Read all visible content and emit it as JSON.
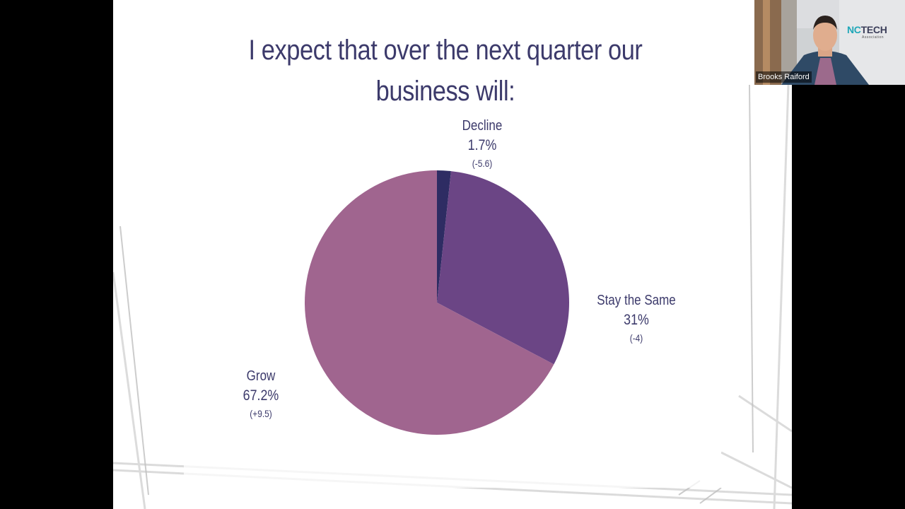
{
  "slide": {
    "title": "I expect that over the next quarter our business will:"
  },
  "chart_data": {
    "type": "pie",
    "title": "I expect that over the next quarter our business will:",
    "slices": [
      {
        "label": "Decline",
        "value": 1.7,
        "value_label": "1.7%",
        "change": "(-5.6)",
        "color": "#2e2c63"
      },
      {
        "label": "Stay the Same",
        "value": 31,
        "value_label": "31%",
        "change": "(-4)",
        "color": "#6b4585"
      },
      {
        "label": "Grow",
        "value": 67.2,
        "value_label": "67.2%",
        "change": "(+9.5)",
        "color": "#a0658f"
      }
    ],
    "start_angle": "12 o'clock",
    "direction": "clockwise"
  },
  "webcam": {
    "participant_name": "Brooks Raiford",
    "logo_text_nc": "NC",
    "logo_text_tech": "TECH",
    "logo_subtext": "Association"
  }
}
